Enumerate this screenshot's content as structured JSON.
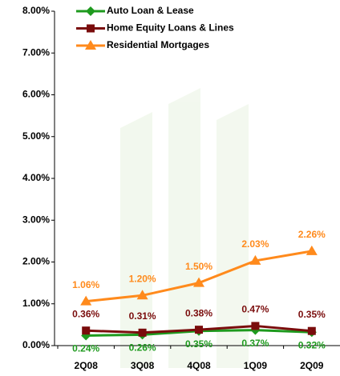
{
  "chart_data": {
    "type": "line",
    "categories": [
      "2Q08",
      "3Q08",
      "4Q08",
      "1Q09",
      "2Q09"
    ],
    "series": [
      {
        "name": "Auto Loan & Lease",
        "color": "#1e9a1e",
        "marker": "diamond",
        "label_position": "below",
        "values": [
          0.24,
          0.26,
          0.35,
          0.37,
          0.32
        ],
        "value_labels": [
          "0.24%",
          "0.26%",
          "0.35%",
          "0.37%",
          "0.32%"
        ]
      },
      {
        "name": "Home Equity Loans & Lines",
        "color": "#7a0c0c",
        "marker": "square",
        "label_position": "above",
        "values": [
          0.36,
          0.31,
          0.38,
          0.47,
          0.35
        ],
        "value_labels": [
          "0.36%",
          "0.31%",
          "0.38%",
          "0.47%",
          "0.35%"
        ]
      },
      {
        "name": "Residential Mortgages",
        "color": "#ff8a1c",
        "marker": "triangle",
        "label_position": "above",
        "values": [
          1.06,
          1.2,
          1.5,
          2.03,
          2.26
        ],
        "value_labels": [
          "1.06%",
          "1.20%",
          "1.50%",
          "2.03%",
          "2.26%"
        ]
      }
    ],
    "ylim": [
      0,
      8
    ],
    "yticks": [
      {
        "value": 0,
        "label": "0.00%"
      },
      {
        "value": 1,
        "label": "1.00%"
      },
      {
        "value": 2,
        "label": "2.00%"
      },
      {
        "value": 3,
        "label": "3.00%"
      },
      {
        "value": 4,
        "label": "4.00%"
      },
      {
        "value": 5,
        "label": "5.00%"
      },
      {
        "value": 6,
        "label": "6.00%"
      },
      {
        "value": 7,
        "label": "7.00%"
      },
      {
        "value": 8,
        "label": "8.00%"
      }
    ],
    "grid": false,
    "legend": "top-left"
  }
}
